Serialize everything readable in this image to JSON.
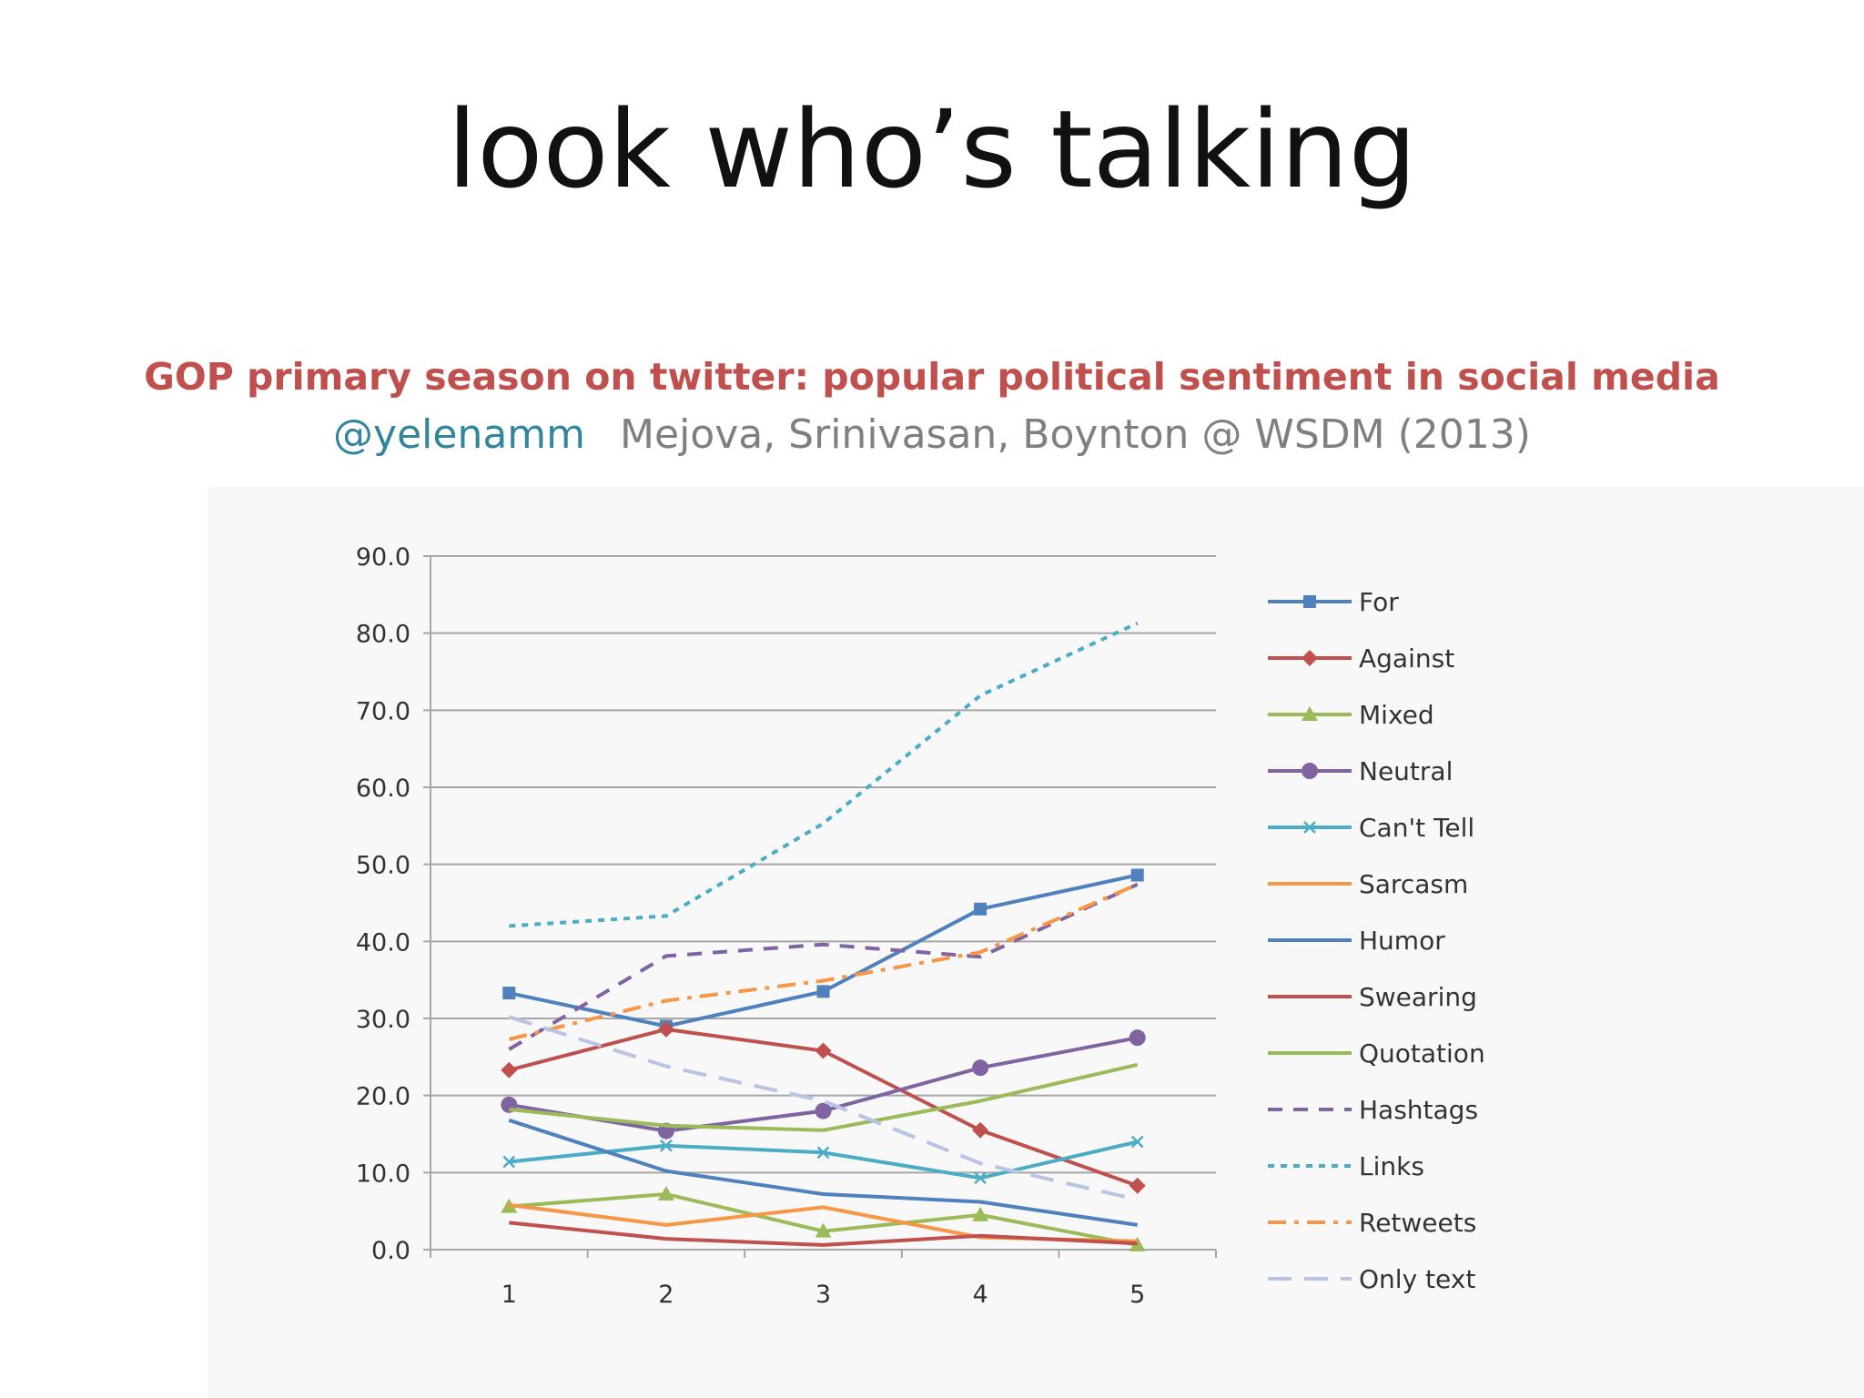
{
  "slide": {
    "title": "look who’s talking",
    "paper_title": "GOP primary season on twitter: popular political sentiment in social media",
    "handle": "@yelenamm",
    "authors": "Mejova, Srinivasan, Boynton @ WSDM (2013)"
  },
  "colors": {
    "title": "#111111",
    "paper_title": "#c0504d",
    "handle": "#31859c",
    "authors": "#7f7f7f",
    "grid": "#a6a6a6"
  },
  "chart_data": {
    "type": "line",
    "title": "",
    "xlabel": "",
    "ylabel": "",
    "x": [
      1,
      2,
      3,
      4,
      5
    ],
    "x_tick_labels": [
      "1",
      "2",
      "3",
      "4",
      "5"
    ],
    "ylim": [
      0,
      90
    ],
    "y_tick_labels": [
      "0.0",
      "10.0",
      "20.0",
      "30.0",
      "40.0",
      "50.0",
      "60.0",
      "70.0",
      "80.0",
      "90.0"
    ],
    "grid": true,
    "legend_position": "right",
    "series": [
      {
        "name": "For",
        "values": [
          33.3,
          29.0,
          33.5,
          44.2,
          48.6
        ],
        "color": "#4f81bd",
        "dash": "solid",
        "marker": "square"
      },
      {
        "name": "Against",
        "values": [
          23.3,
          28.6,
          25.8,
          15.5,
          8.3
        ],
        "color": "#c0504d",
        "dash": "solid",
        "marker": "diamond"
      },
      {
        "name": "Mixed",
        "values": [
          5.6,
          7.2,
          2.4,
          4.5,
          0.6
        ],
        "color": "#9bbb59",
        "dash": "solid",
        "marker": "triangle"
      },
      {
        "name": "Neutral",
        "values": [
          18.8,
          15.4,
          18.0,
          23.6,
          27.5
        ],
        "color": "#8064a2",
        "dash": "solid",
        "marker": "circle"
      },
      {
        "name": "Can't Tell",
        "values": [
          11.4,
          13.5,
          12.6,
          9.3,
          14.0
        ],
        "color": "#4bacc6",
        "dash": "solid",
        "marker": "x"
      },
      {
        "name": "Sarcasm",
        "values": [
          5.8,
          3.2,
          5.5,
          1.6,
          1.1
        ],
        "color": "#f79646",
        "dash": "solid",
        "marker": "none"
      },
      {
        "name": "Humor",
        "values": [
          16.8,
          10.2,
          7.2,
          6.2,
          3.2
        ],
        "color": "#4f81bd",
        "dash": "solid",
        "marker": "none"
      },
      {
        "name": "Swearing",
        "values": [
          3.5,
          1.4,
          0.6,
          1.8,
          0.8
        ],
        "color": "#c0504d",
        "dash": "solid",
        "marker": "none"
      },
      {
        "name": "Quotation",
        "values": [
          18.2,
          16.1,
          15.5,
          19.3,
          24.0
        ],
        "color": "#9bbb59",
        "dash": "solid",
        "marker": "none"
      },
      {
        "name": "Hashtags",
        "values": [
          26.0,
          38.1,
          39.6,
          38.0,
          47.4
        ],
        "color": "#8064a2",
        "dash": "dash",
        "marker": "none"
      },
      {
        "name": "Links",
        "values": [
          42.0,
          43.3,
          55.3,
          71.9,
          81.3
        ],
        "color": "#4bacc6",
        "dash": "dot",
        "marker": "none"
      },
      {
        "name": "Retweets",
        "values": [
          27.3,
          32.3,
          34.9,
          38.6,
          47.4
        ],
        "color": "#f79646",
        "dash": "dashdot",
        "marker": "none"
      },
      {
        "name": "Only text",
        "values": [
          30.2,
          23.8,
          19.3,
          11.2,
          6.5
        ],
        "color": "#b9c4e4",
        "dash": "longdash",
        "marker": "none"
      }
    ]
  }
}
